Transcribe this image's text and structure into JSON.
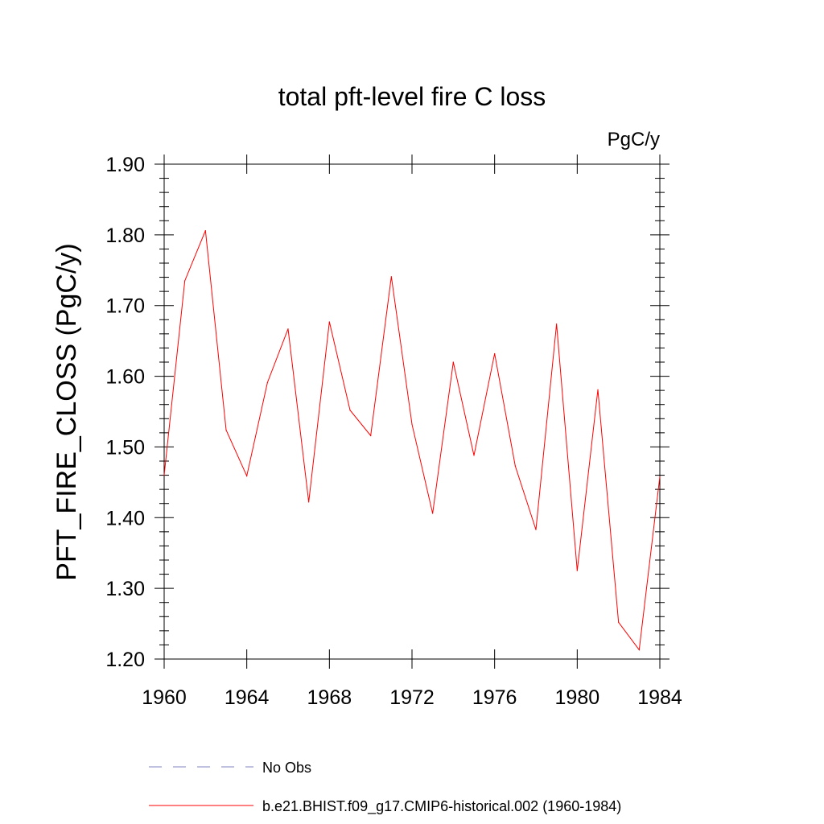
{
  "chart_data": {
    "type": "line",
    "title": "total pft-level fire C loss",
    "units_label": "PgC/y",
    "ylabel": "PFT_FIRE_CLOSS  (PgC/y)",
    "xlabel": "",
    "xlim": [
      1960,
      1984
    ],
    "ylim": [
      1.2,
      1.9
    ],
    "x_ticks": [
      "1960",
      "1964",
      "1968",
      "1972",
      "1976",
      "1980",
      "1984"
    ],
    "y_ticks": [
      "1.20",
      "1.30",
      "1.40",
      "1.50",
      "1.60",
      "1.70",
      "1.80",
      "1.90"
    ],
    "grid": false,
    "legend_position": "bottom",
    "x": [
      1960,
      1961,
      1962,
      1963,
      1964,
      1965,
      1966,
      1967,
      1968,
      1969,
      1970,
      1971,
      1972,
      1973,
      1974,
      1975,
      1976,
      1977,
      1978,
      1979,
      1980,
      1981,
      1982,
      1983,
      1984
    ],
    "series": [
      {
        "name": "b.e21.BHIST.f09_g17.CMIP6-historical.002 (1960-1984)",
        "color": "#ff0000",
        "dash": "solid",
        "values": [
          1.46,
          1.735,
          1.806,
          1.524,
          1.459,
          1.591,
          1.667,
          1.422,
          1.677,
          1.552,
          1.516,
          1.741,
          1.532,
          1.406,
          1.62,
          1.488,
          1.632,
          1.473,
          1.383,
          1.674,
          1.325,
          1.581,
          1.252,
          1.213,
          1.458
        ]
      }
    ],
    "legend": [
      {
        "label": "No Obs",
        "color": "#8080c0",
        "dash": "dashed"
      },
      {
        "label": "b.e21.BHIST.f09_g17.CMIP6-historical.002 (1960-1984)",
        "color": "#ff0000",
        "dash": "solid"
      }
    ]
  }
}
